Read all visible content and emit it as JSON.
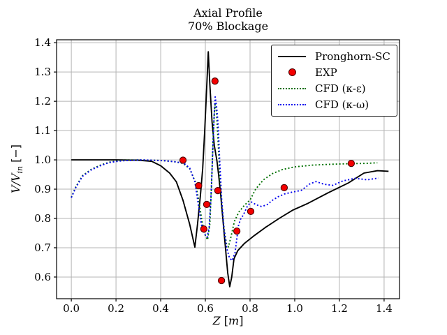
{
  "title": {
    "line1": "Axial Profile",
    "line2": "70% Blockage"
  },
  "axes": {
    "xlabel_var": "Z",
    "xlabel_sep": " [",
    "xlabel_unit": "m",
    "xlabel_close": "]",
    "ylabel_pre": "V/V",
    "ylabel_sub": "in",
    "ylabel_post": " [−]"
  },
  "legend": {
    "entries": [
      {
        "label": "Pronghorn-SC",
        "style": "solid",
        "color": "#000000"
      },
      {
        "label": "EXP",
        "style": "marker",
        "color": "#f40000"
      },
      {
        "label": "CFD (κ-ε)",
        "style": "dotted",
        "color": "#007000"
      },
      {
        "label": "CFD (κ-ω)",
        "style": "dotted",
        "color": "#0000ee"
      }
    ]
  },
  "colors": {
    "grid": "#b4b4b4",
    "frame": "#000000",
    "pronghorn": "#000000",
    "exp_fill": "#f40000",
    "exp_edge": "#4d0000",
    "cfd_ke": "#007000",
    "cfd_kw": "#0000ee"
  },
  "chart_data": {
    "type": "line",
    "title": "Axial Profile 70% Blockage",
    "xlabel": "Z [m]",
    "ylabel": "V/V_in [-]",
    "grid": true,
    "legend_position": "upper right",
    "xlim": [
      -0.066,
      1.469
    ],
    "ylim": [
      0.526,
      1.41
    ],
    "x_ticks": [
      0.0,
      0.2,
      0.4,
      0.6,
      0.8,
      1.0,
      1.2,
      1.4
    ],
    "y_ticks": [
      0.6,
      0.7,
      0.8,
      0.9,
      1.0,
      1.1,
      1.2,
      1.3,
      1.4
    ],
    "series": [
      {
        "name": "Pronghorn-SC",
        "style": "solid",
        "color": "#000000",
        "width": 1.9,
        "points": [
          [
            0.0,
            1.0
          ],
          [
            0.2,
            1.0
          ],
          [
            0.3,
            0.999
          ],
          [
            0.36,
            0.995
          ],
          [
            0.4,
            0.98
          ],
          [
            0.44,
            0.955
          ],
          [
            0.47,
            0.925
          ],
          [
            0.5,
            0.862
          ],
          [
            0.53,
            0.78
          ],
          [
            0.553,
            0.702
          ],
          [
            0.565,
            0.78
          ],
          [
            0.578,
            0.88
          ],
          [
            0.588,
            0.97
          ],
          [
            0.597,
            1.1
          ],
          [
            0.606,
            1.25
          ],
          [
            0.613,
            1.369
          ],
          [
            0.62,
            1.26
          ],
          [
            0.63,
            1.13
          ],
          [
            0.64,
            1.05
          ],
          [
            0.652,
            0.995
          ],
          [
            0.66,
            0.945
          ],
          [
            0.668,
            0.885
          ],
          [
            0.678,
            0.8
          ],
          [
            0.69,
            0.7
          ],
          [
            0.7,
            0.615
          ],
          [
            0.709,
            0.567
          ],
          [
            0.718,
            0.6
          ],
          [
            0.728,
            0.662
          ],
          [
            0.745,
            0.69
          ],
          [
            0.775,
            0.715
          ],
          [
            0.82,
            0.742
          ],
          [
            0.87,
            0.77
          ],
          [
            0.93,
            0.8
          ],
          [
            0.99,
            0.828
          ],
          [
            1.06,
            0.852
          ],
          [
            1.15,
            0.888
          ],
          [
            1.24,
            0.921
          ],
          [
            1.31,
            0.955
          ],
          [
            1.37,
            0.963
          ],
          [
            1.42,
            0.961
          ]
        ]
      },
      {
        "name": "CFD (κ-ε)",
        "style": "dotted",
        "color": "#007000",
        "width": 1.9,
        "points": [
          [
            0.0,
            0.872
          ],
          [
            0.02,
            0.908
          ],
          [
            0.05,
            0.946
          ],
          [
            0.09,
            0.968
          ],
          [
            0.13,
            0.982
          ],
          [
            0.17,
            0.992
          ],
          [
            0.22,
            0.998
          ],
          [
            0.3,
            1.0
          ],
          [
            0.4,
            0.998
          ],
          [
            0.46,
            0.994
          ],
          [
            0.5,
            0.988
          ],
          [
            0.53,
            0.97
          ],
          [
            0.555,
            0.925
          ],
          [
            0.572,
            0.855
          ],
          [
            0.585,
            0.79
          ],
          [
            0.598,
            0.745
          ],
          [
            0.61,
            0.727
          ],
          [
            0.62,
            0.78
          ],
          [
            0.628,
            0.92
          ],
          [
            0.634,
            1.06
          ],
          [
            0.64,
            1.16
          ],
          [
            0.644,
            1.195
          ],
          [
            0.65,
            1.16
          ],
          [
            0.657,
            1.06
          ],
          [
            0.665,
            0.945
          ],
          [
            0.674,
            0.845
          ],
          [
            0.684,
            0.765
          ],
          [
            0.694,
            0.715
          ],
          [
            0.703,
            0.703
          ],
          [
            0.714,
            0.735
          ],
          [
            0.73,
            0.79
          ],
          [
            0.75,
            0.822
          ],
          [
            0.775,
            0.845
          ],
          [
            0.8,
            0.863
          ],
          [
            0.825,
            0.9
          ],
          [
            0.86,
            0.932
          ],
          [
            0.9,
            0.953
          ],
          [
            0.945,
            0.967
          ],
          [
            1.0,
            0.976
          ],
          [
            1.08,
            0.982
          ],
          [
            1.16,
            0.985
          ],
          [
            1.25,
            0.987
          ],
          [
            1.32,
            0.988
          ],
          [
            1.37,
            0.99
          ]
        ]
      },
      {
        "name": "CFD (κ-ω)",
        "style": "dotted",
        "color": "#0000ee",
        "width": 1.9,
        "points": [
          [
            0.0,
            0.871
          ],
          [
            0.02,
            0.905
          ],
          [
            0.05,
            0.944
          ],
          [
            0.09,
            0.966
          ],
          [
            0.13,
            0.98
          ],
          [
            0.17,
            0.991
          ],
          [
            0.23,
            0.997
          ],
          [
            0.32,
            1.0
          ],
          [
            0.42,
            0.997
          ],
          [
            0.47,
            0.993
          ],
          [
            0.505,
            0.988
          ],
          [
            0.53,
            0.972
          ],
          [
            0.553,
            0.925
          ],
          [
            0.568,
            0.85
          ],
          [
            0.582,
            0.78
          ],
          [
            0.595,
            0.748
          ],
          [
            0.608,
            0.736
          ],
          [
            0.617,
            0.77
          ],
          [
            0.625,
            0.87
          ],
          [
            0.632,
            1.01
          ],
          [
            0.638,
            1.13
          ],
          [
            0.644,
            1.215
          ],
          [
            0.65,
            1.185
          ],
          [
            0.657,
            1.12
          ],
          [
            0.664,
            1.0
          ],
          [
            0.673,
            0.865
          ],
          [
            0.683,
            0.765
          ],
          [
            0.695,
            0.7
          ],
          [
            0.708,
            0.665
          ],
          [
            0.72,
            0.656
          ],
          [
            0.733,
            0.684
          ],
          [
            0.748,
            0.775
          ],
          [
            0.757,
            0.797
          ],
          [
            0.77,
            0.812
          ],
          [
            0.79,
            0.845
          ],
          [
            0.807,
            0.856
          ],
          [
            0.827,
            0.847
          ],
          [
            0.85,
            0.841
          ],
          [
            0.875,
            0.846
          ],
          [
            0.9,
            0.862
          ],
          [
            0.925,
            0.874
          ],
          [
            0.955,
            0.884
          ],
          [
            0.99,
            0.89
          ],
          [
            1.03,
            0.896
          ],
          [
            1.065,
            0.917
          ],
          [
            1.095,
            0.926
          ],
          [
            1.13,
            0.917
          ],
          [
            1.17,
            0.913
          ],
          [
            1.215,
            0.928
          ],
          [
            1.27,
            0.937
          ],
          [
            1.325,
            0.932
          ],
          [
            1.375,
            0.938
          ]
        ]
      },
      {
        "name": "EXP",
        "style": "scatter",
        "color": "#f40000",
        "edge": "#4d0000",
        "marker_radius": 4.6,
        "points": [
          [
            0.5,
            0.999
          ],
          [
            0.57,
            0.912
          ],
          [
            0.593,
            0.764
          ],
          [
            0.606,
            0.848
          ],
          [
            0.643,
            1.269
          ],
          [
            0.656,
            0.895
          ],
          [
            0.672,
            0.588
          ],
          [
            0.741,
            0.757
          ],
          [
            0.803,
            0.824
          ],
          [
            0.953,
            0.905
          ],
          [
            1.253,
            0.988
          ]
        ]
      }
    ]
  }
}
